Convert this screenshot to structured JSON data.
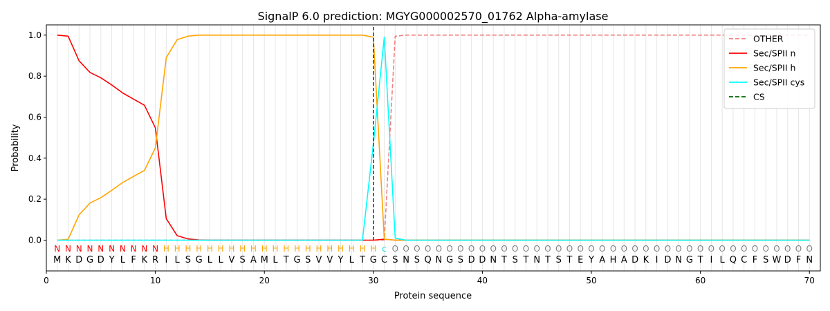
{
  "chart_data": {
    "type": "line",
    "title": "SignalP 6.0 prediction: MGYG000002570_01762 Alpha-amylase",
    "xlabel": "Protein sequence",
    "ylabel": "Probability",
    "xlim": [
      0,
      71
    ],
    "ylim": [
      -0.15,
      1.05
    ],
    "xticks": [
      0,
      10,
      20,
      30,
      40,
      50,
      60,
      70
    ],
    "yticks": [
      0.0,
      0.2,
      0.4,
      0.6,
      0.8,
      1.0
    ],
    "grid": "vertical lines at each residue",
    "legend_position": "top-right",
    "sequence": [
      "M",
      "K",
      "D",
      "G",
      "D",
      "Y",
      "L",
      "F",
      "K",
      "R",
      "I",
      "L",
      "S",
      "G",
      "L",
      "L",
      "V",
      "S",
      "A",
      "M",
      "L",
      "T",
      "G",
      "S",
      "V",
      "V",
      "Y",
      "L",
      "T",
      "G",
      "C",
      "S",
      "N",
      "S",
      "Q",
      "N",
      "G",
      "S",
      "D",
      "D",
      "N",
      "T",
      "S",
      "T",
      "N",
      "T",
      "S",
      "T",
      "E",
      "Y",
      "A",
      "H",
      "A",
      "D",
      "K",
      "I",
      "D",
      "N",
      "G",
      "T",
      "I",
      "L",
      "Q",
      "C",
      "F",
      "S",
      "W",
      "D",
      "F",
      "N"
    ],
    "labels": [
      "N",
      "N",
      "N",
      "N",
      "N",
      "N",
      "N",
      "N",
      "N",
      "N",
      "H",
      "H",
      "H",
      "H",
      "H",
      "H",
      "H",
      "H",
      "H",
      "H",
      "H",
      "H",
      "H",
      "H",
      "H",
      "H",
      "H",
      "H",
      "H",
      "H",
      "C",
      "O",
      "O",
      "O",
      "O",
      "O",
      "O",
      "O",
      "O",
      "O",
      "O",
      "O",
      "O",
      "O",
      "O",
      "O",
      "O",
      "O",
      "O",
      "O",
      "O",
      "O",
      "O",
      "O",
      "O",
      "O",
      "O",
      "O",
      "O",
      "O",
      "O",
      "O",
      "O",
      "O",
      "O",
      "O",
      "O",
      "O",
      "O",
      "O"
    ],
    "label_colors": {
      "N": "#ff0000",
      "H": "#ffa500",
      "C": "#00e5e5",
      "O": "#808080"
    },
    "cleavage_site": 30,
    "series": [
      {
        "name": "OTHER",
        "color": "#f08080",
        "style": "dashed",
        "x": [
          1,
          30,
          31,
          32,
          33,
          70
        ],
        "y": [
          0.0,
          0.0,
          0.0,
          0.995,
          1.0,
          1.0
        ]
      },
      {
        "name": "Sec/SPII n",
        "color": "#ff0000",
        "style": "solid",
        "x": [
          1,
          2,
          3,
          4,
          5,
          6,
          7,
          8,
          9,
          10,
          11,
          12,
          13,
          14,
          15,
          30,
          31,
          32,
          70
        ],
        "y": [
          1.0,
          0.995,
          0.875,
          0.818,
          0.792,
          0.757,
          0.718,
          0.688,
          0.658,
          0.548,
          0.105,
          0.022,
          0.006,
          0.001,
          0.0,
          0.0,
          0.005,
          0.0,
          0.0
        ]
      },
      {
        "name": "Sec/SPII h",
        "color": "#ffa500",
        "style": "solid",
        "x": [
          1,
          2,
          3,
          4,
          5,
          6,
          7,
          8,
          9,
          10,
          11,
          12,
          13,
          14,
          15,
          29,
          30,
          31,
          32,
          70
        ],
        "y": [
          0.0,
          0.004,
          0.123,
          0.181,
          0.207,
          0.243,
          0.281,
          0.311,
          0.34,
          0.45,
          0.89,
          0.978,
          0.995,
          1.0,
          1.0,
          1.0,
          0.99,
          0.005,
          0.0,
          0.0
        ]
      },
      {
        "name": "Sec/SPII cys",
        "color": "#00ffff",
        "style": "solid",
        "x": [
          1,
          29,
          30,
          31,
          32,
          33,
          70
        ],
        "y": [
          0.0,
          0.0,
          0.47,
          0.99,
          0.01,
          0.0,
          0.0
        ]
      }
    ],
    "cs_legend": {
      "name": "CS",
      "color": "#006400",
      "style": "dashed"
    }
  }
}
